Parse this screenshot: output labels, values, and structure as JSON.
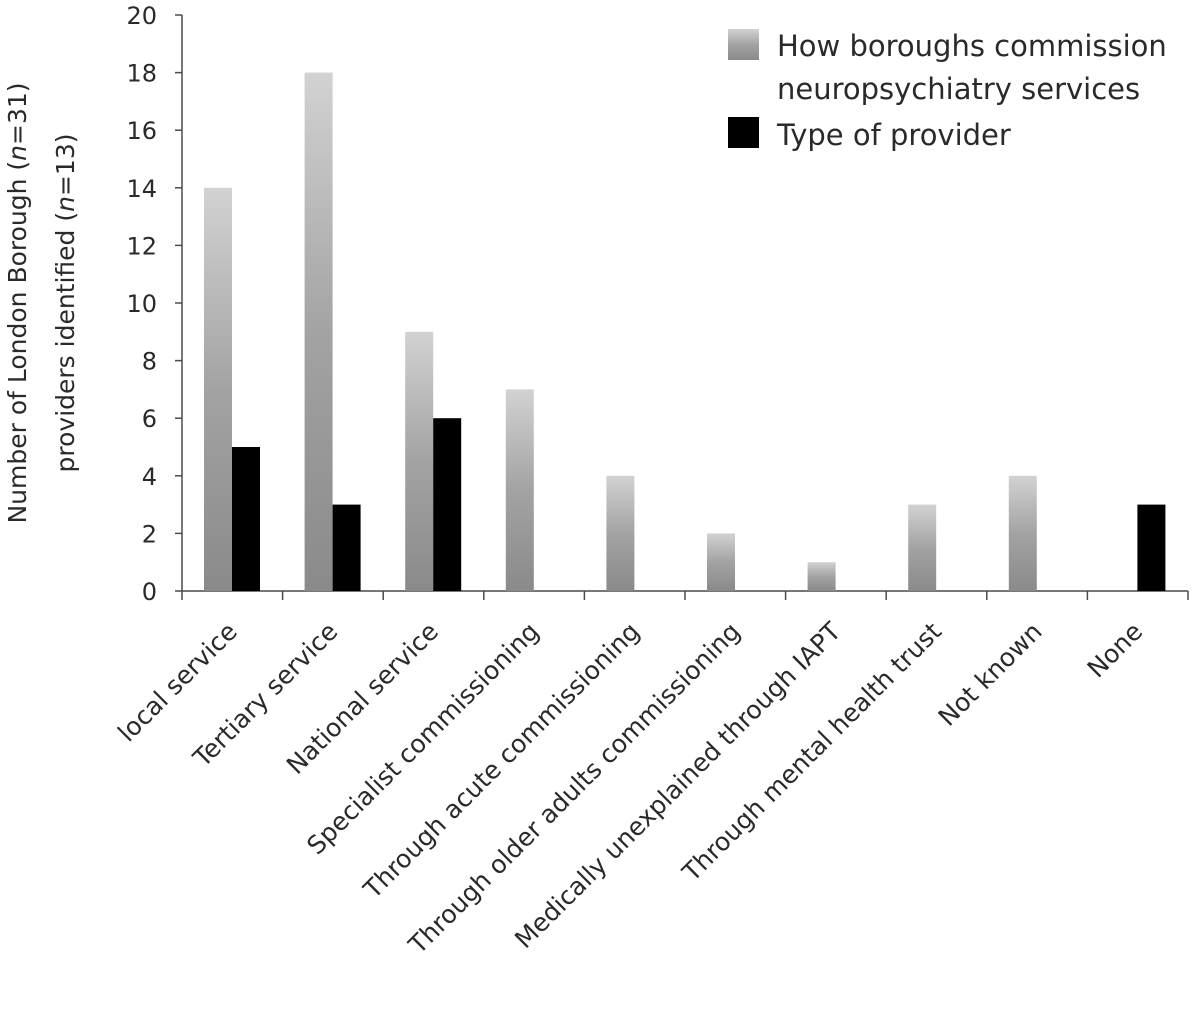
{
  "chart_data": {
    "type": "bar",
    "categories": [
      "local service",
      "Tertiary service",
      "National service",
      "Specialist commissioning",
      "Through acute commissioning",
      "Through older adults commissioning",
      "Medically unexplained through IAPT",
      "Through mental health trust",
      "Not known",
      "None"
    ],
    "series": [
      {
        "name": "How boroughs commission neuropsychiatry services",
        "legend_lines": [
          "How boroughs commission",
          "neuropsychiatry services"
        ],
        "color": "#9e9e9e",
        "values": [
          14,
          18,
          9,
          7,
          4,
          2,
          1,
          3,
          4,
          0
        ]
      },
      {
        "name": "Type of provider",
        "legend_lines": [
          "Type of provider"
        ],
        "color": "#000000",
        "values": [
          5,
          3,
          6,
          0,
          0,
          0,
          0,
          0,
          0,
          3
        ]
      }
    ],
    "ylabel_parts": [
      [
        "Number of London Borough (",
        "n",
        "=31)"
      ],
      [
        "providers identified (",
        "n",
        "=13)"
      ]
    ],
    "ylim": [
      0,
      20
    ],
    "yticks": [
      0,
      2,
      4,
      6,
      8,
      10,
      12,
      14,
      16,
      18,
      20
    ],
    "grid": false,
    "legend_position": "top-right"
  }
}
